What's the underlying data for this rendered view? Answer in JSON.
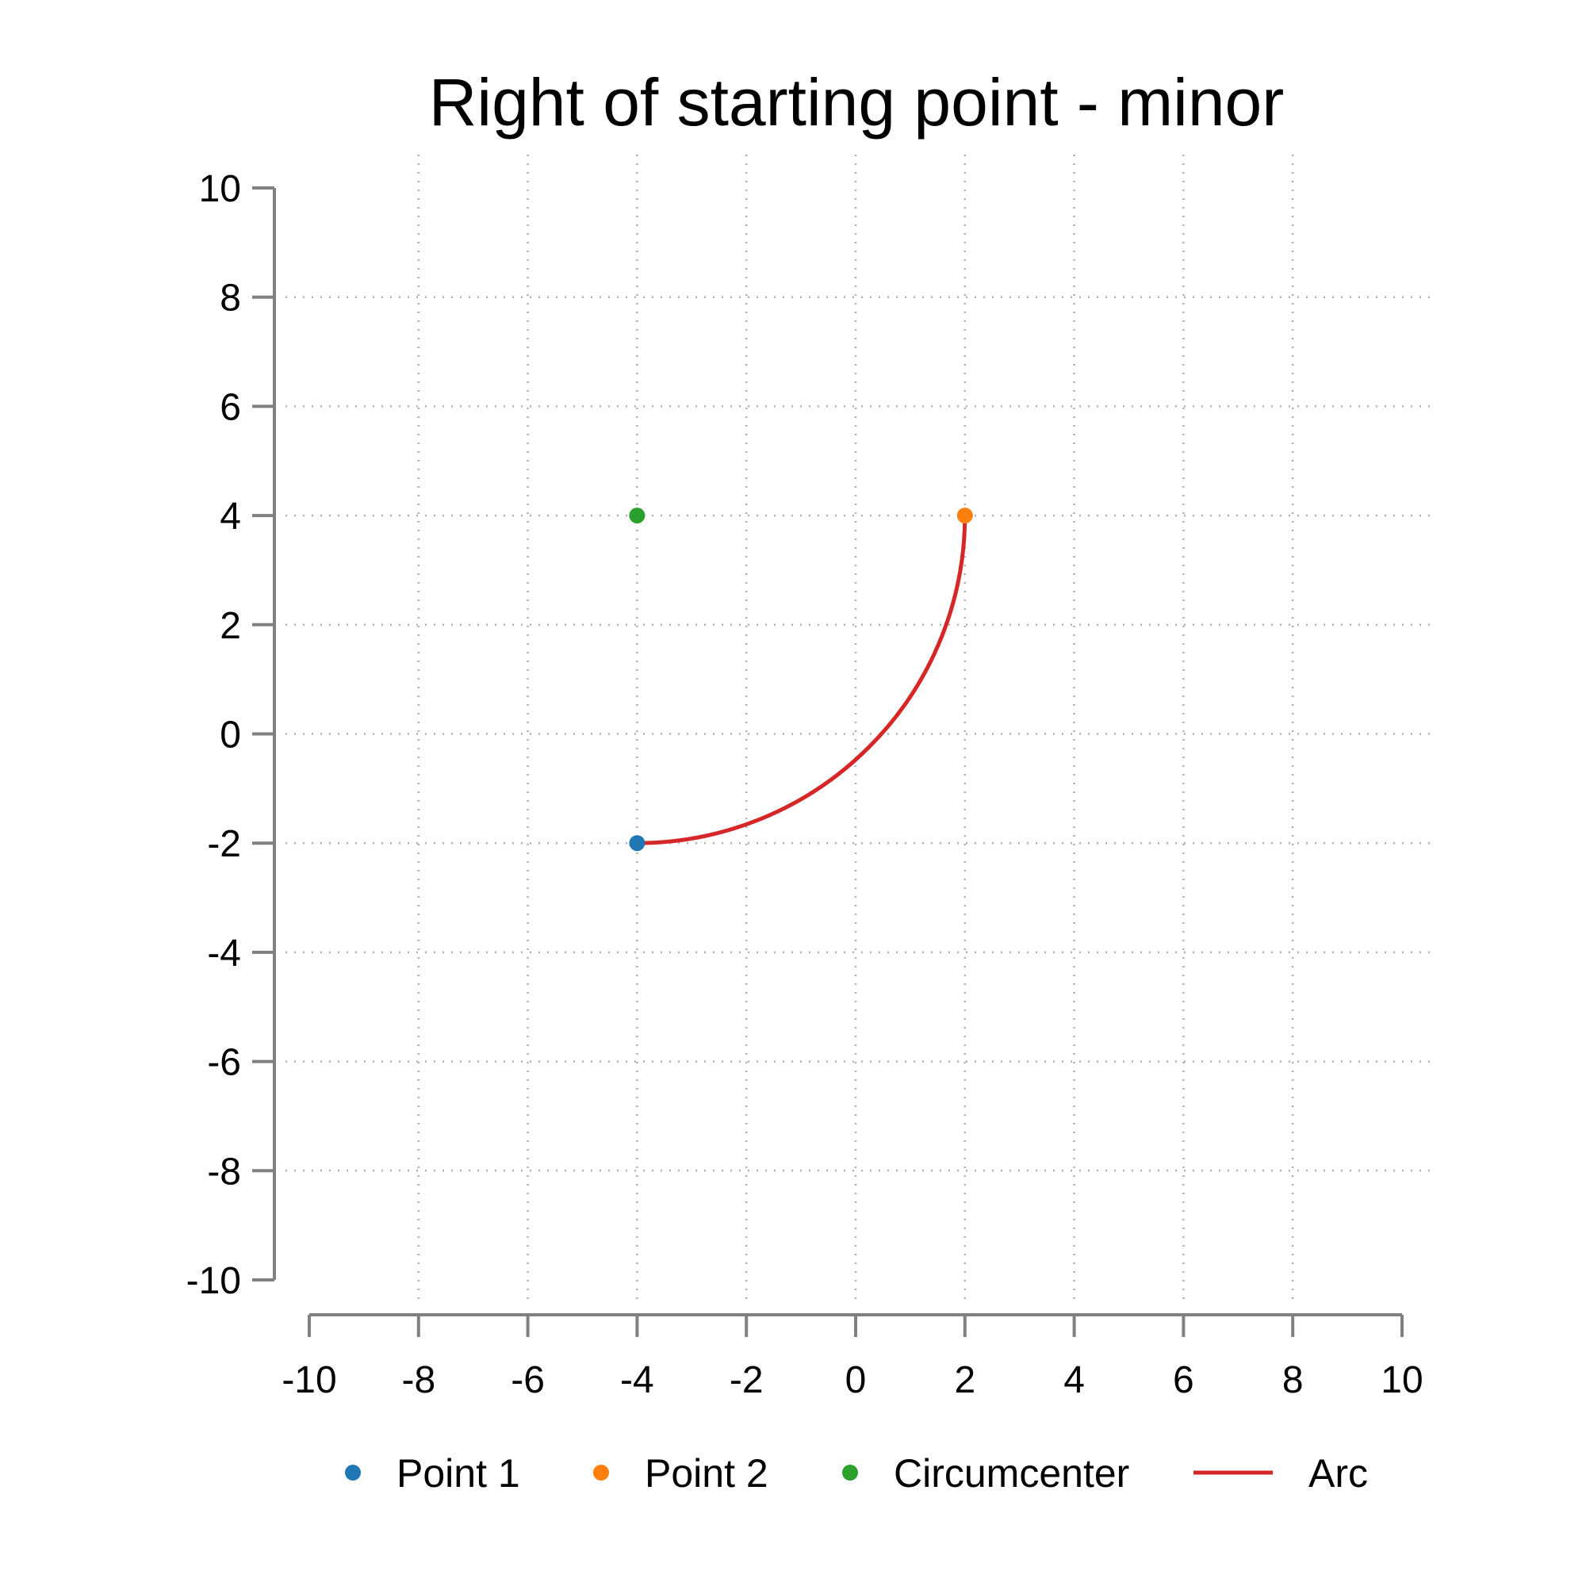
{
  "chart_data": {
    "type": "scatter",
    "title": "Right of starting point - minor",
    "xlabel": "",
    "ylabel": "",
    "xlim": [
      -10,
      10
    ],
    "ylim": [
      -10,
      10
    ],
    "xticks": [
      -10,
      -8,
      -6,
      -4,
      -2,
      0,
      2,
      4,
      6,
      8,
      10
    ],
    "yticks": [
      -10,
      -8,
      -6,
      -4,
      -2,
      0,
      2,
      4,
      6,
      8,
      10
    ],
    "grid": true,
    "legend_position": "bottom",
    "series": [
      {
        "name": "Point 1",
        "kind": "point",
        "color": "#1f77b4",
        "x": [
          -4
        ],
        "y": [
          -2
        ]
      },
      {
        "name": "Point 2",
        "kind": "point",
        "color": "#ff7f0e",
        "x": [
          2
        ],
        "y": [
          4
        ]
      },
      {
        "name": "Circumcenter",
        "kind": "point",
        "color": "#2ca02c",
        "x": [
          -4
        ],
        "y": [
          4
        ]
      },
      {
        "name": "Arc",
        "kind": "line",
        "color": "#d62728",
        "center": [
          -4,
          4
        ],
        "radius": 6,
        "from": [
          -4,
          -2
        ],
        "to": [
          2,
          4
        ]
      }
    ]
  }
}
